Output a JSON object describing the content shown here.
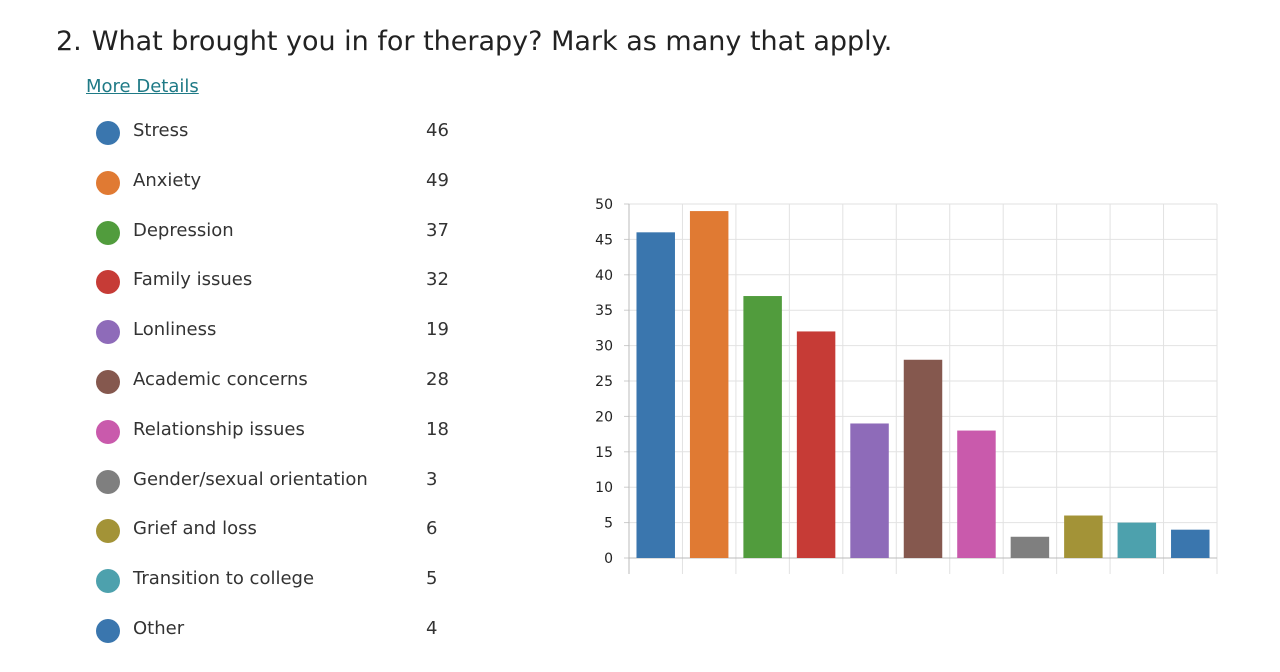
{
  "question": {
    "number": "2.",
    "text": "What brought you in for therapy? Mark as many that apply."
  },
  "more_details_label": "More Details",
  "legend": [
    {
      "label": "Stress",
      "count": "46",
      "color": "#3a76ae"
    },
    {
      "label": "Anxiety",
      "count": "49",
      "color": "#e07a33"
    },
    {
      "label": "Depression",
      "count": "37",
      "color": "#519c3d"
    },
    {
      "label": "Family issues",
      "count": "32",
      "color": "#c63b36"
    },
    {
      "label": "Lonliness",
      "count": "19",
      "color": "#8e6bb9"
    },
    {
      "label": "Academic concerns",
      "count": "28",
      "color": "#85584e"
    },
    {
      "label": "Relationship issues",
      "count": "18",
      "color": "#c95aac"
    },
    {
      "label": "Gender/sexual orientation",
      "count": "3",
      "color": "#7f7f7f"
    },
    {
      "label": "Grief and loss",
      "count": "6",
      "color": "#a39337"
    },
    {
      "label": "Transition to college",
      "count": "5",
      "color": "#4da1ad"
    },
    {
      "label": "Other",
      "count": "4",
      "color": "#3a76ae"
    }
  ],
  "chart_data": {
    "type": "bar",
    "categories": [
      "Stress",
      "Anxiety",
      "Depression",
      "Family issues",
      "Lonliness",
      "Academic concerns",
      "Relationship issues",
      "Gender/sexual orientation",
      "Grief and loss",
      "Transition to college",
      "Other"
    ],
    "values": [
      46,
      49,
      37,
      32,
      19,
      28,
      18,
      3,
      6,
      5,
      4
    ],
    "colors": [
      "#3a76ae",
      "#e07a33",
      "#519c3d",
      "#c63b36",
      "#8e6bb9",
      "#85584e",
      "#c95aac",
      "#7f7f7f",
      "#a39337",
      "#4da1ad",
      "#3a76ae"
    ],
    "ylim": [
      0,
      50
    ],
    "yticks": [
      "0",
      "5",
      "10",
      "15",
      "20",
      "25",
      "30",
      "35",
      "40",
      "45",
      "50"
    ],
    "grid": true,
    "title": "",
    "xlabel": "",
    "ylabel": ""
  }
}
